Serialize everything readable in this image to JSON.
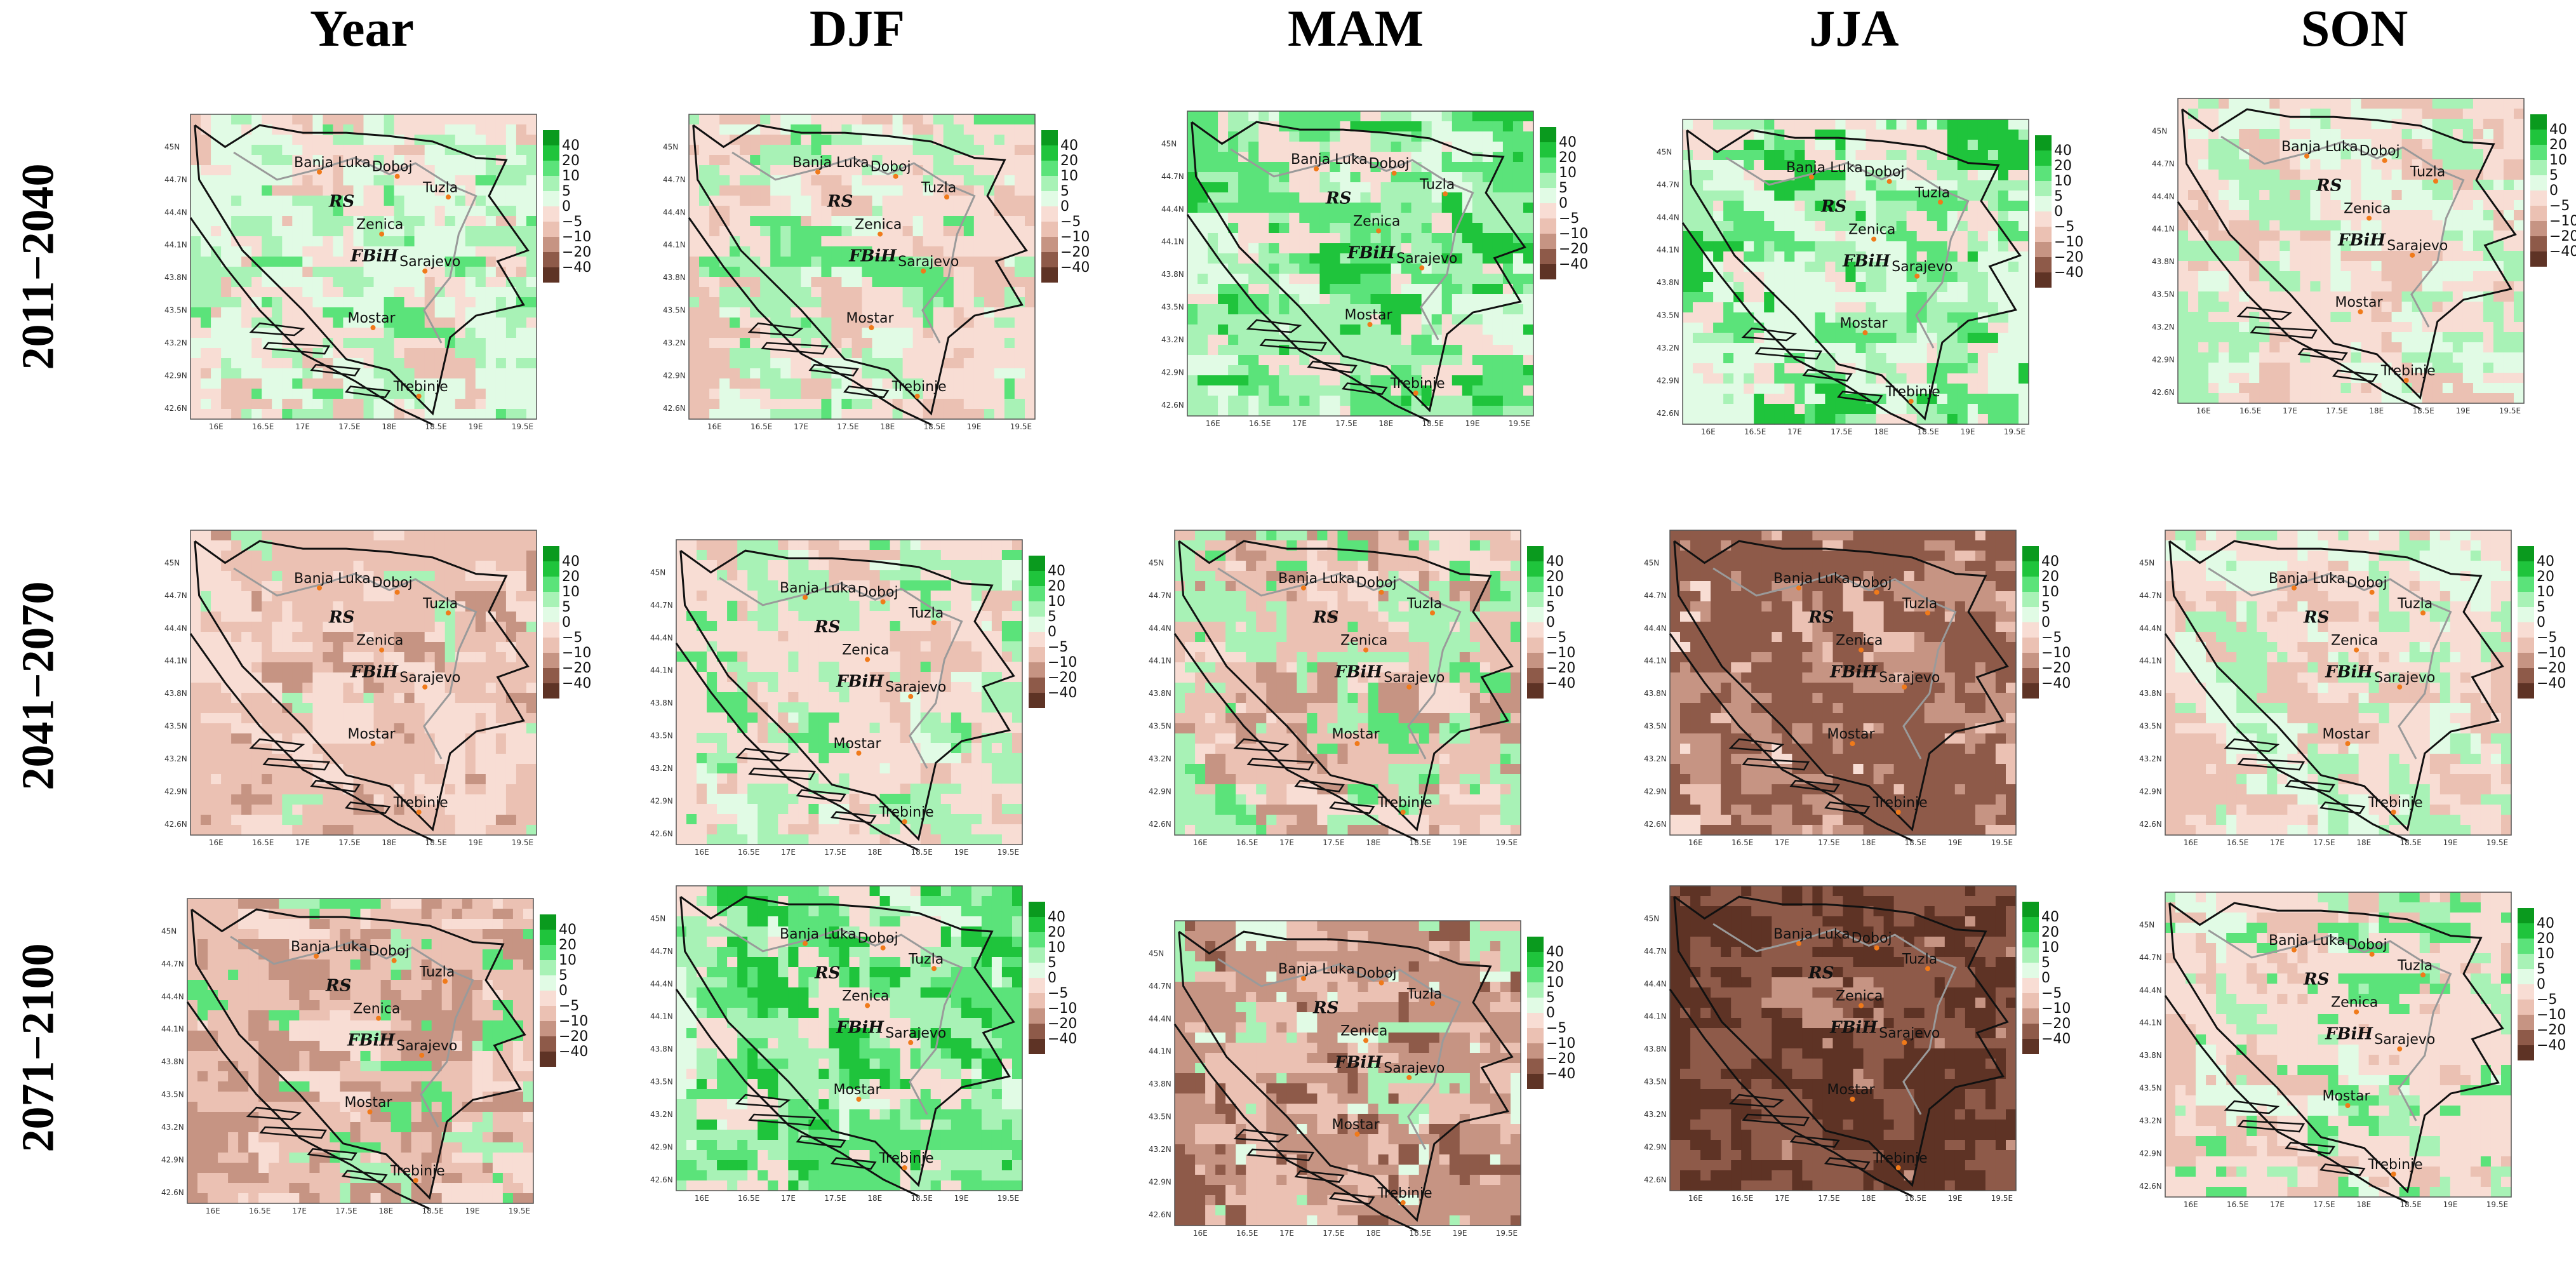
{
  "columns": [
    "Year",
    "DJF",
    "MAM",
    "JJA",
    "SON"
  ],
  "rows": [
    "2011−2040",
    "2041−2070",
    "2071−2100"
  ],
  "city_labels": [
    "Banja Luka",
    "Doboj",
    "Tuzla",
    "Zenica",
    "Sarajevo",
    "Mostar",
    "Trebinje"
  ],
  "entity_labels": [
    "RS",
    "FBiH"
  ],
  "x_ticks": [
    "16E",
    "16.5E",
    "17E",
    "17.5E",
    "18E",
    "18.5E",
    "19E",
    "19.5E"
  ],
  "y_ticks": [
    "45N",
    "44.7N",
    "44.4N",
    "44.1N",
    "43.8N",
    "43.5N",
    "43.2N",
    "42.9N",
    "42.6N"
  ],
  "colorbar": {
    "labels": [
      "40",
      "20",
      "10",
      "5",
      "0",
      "−5",
      "−10",
      "−20",
      "−40"
    ],
    "colors": [
      "#0a9a1e",
      "#1fc43c",
      "#5be37a",
      "#a8f2b6",
      "#e1fbe5",
      "#f8ddd4",
      "#ebc1b3",
      "#c69483",
      "#8e5a49",
      "#5e3325"
    ]
  },
  "chart_data": {
    "type": "heatmap",
    "layout": "small multiples grid (3 periods × 5 seasons)",
    "x_axis": "longitude",
    "y_axis": "latitude",
    "xlim": [
      15.7,
      19.7
    ],
    "ylim": [
      42.5,
      45.3
    ],
    "legend_placement": "right of each panel",
    "panels": [
      {
        "row": "2011−2040",
        "column": "Year",
        "dominant_classes": [
          "0 to 5",
          "0 to −5",
          "5 to 10"
        ]
      },
      {
        "row": "2011−2040",
        "column": "DJF",
        "dominant_classes": [
          "0 to −5",
          "5 to 10",
          "−5 to −10"
        ]
      },
      {
        "row": "2011−2040",
        "column": "MAM",
        "dominant_classes": [
          "10 to 20",
          "5 to 10",
          "0 to −5"
        ]
      },
      {
        "row": "2011−2040",
        "column": "JJA",
        "dominant_classes": [
          "0 to 5",
          "10 to 20",
          "0 to −5"
        ]
      },
      {
        "row": "2011−2040",
        "column": "SON",
        "dominant_classes": [
          "0 to −5",
          "0 to 5",
          "−5 to −10"
        ]
      },
      {
        "row": "2041−2070",
        "column": "Year",
        "dominant_classes": [
          "−5 to −10",
          "0 to −5"
        ]
      },
      {
        "row": "2041−2070",
        "column": "DJF",
        "dominant_classes": [
          "0 to −5",
          "5 to 10",
          "−5 to −10"
        ]
      },
      {
        "row": "2041−2070",
        "column": "MAM",
        "dominant_classes": [
          "−5 to −10",
          "5 to 10",
          "−10 to −20"
        ]
      },
      {
        "row": "2041−2070",
        "column": "JJA",
        "dominant_classes": [
          "−20 to −40",
          "−10 to −20"
        ]
      },
      {
        "row": "2041−2070",
        "column": "SON",
        "dominant_classes": [
          "0 to −5",
          "0 to 5",
          "−5 to −10"
        ]
      },
      {
        "row": "2071−2100",
        "column": "Year",
        "dominant_classes": [
          "−5 to −10",
          "−10 to −20",
          "5 to 10"
        ]
      },
      {
        "row": "2071−2100",
        "column": "DJF",
        "dominant_classes": [
          "10 to 20",
          "5 to 10",
          "0 to −5"
        ]
      },
      {
        "row": "2071−2100",
        "column": "MAM",
        "dominant_classes": [
          "−10 to −20",
          "−5 to −10",
          "0 to 5"
        ]
      },
      {
        "row": "2071−2100",
        "column": "JJA",
        "dominant_classes": [
          "−20 to −40",
          "< −40"
        ]
      },
      {
        "row": "2071−2100",
        "column": "SON",
        "dominant_classes": [
          "0 to −5",
          "10 to 20",
          "−5 to −10"
        ]
      }
    ]
  }
}
